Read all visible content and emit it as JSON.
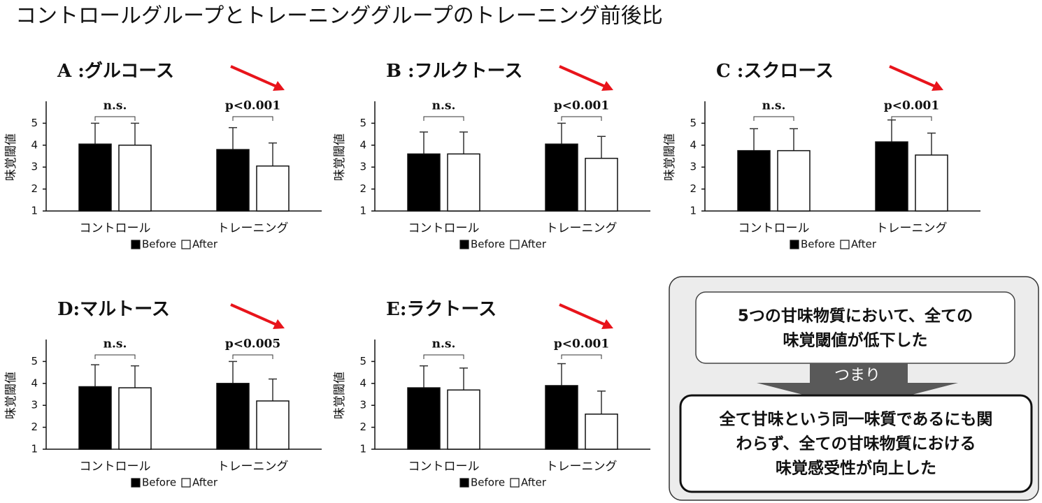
{
  "title": "コントロールグループとトレーニンググループのトレーニング前後比",
  "chart_data": [
    {
      "type": "bar",
      "title": "A :グルコース",
      "y_label": "味覚閾値",
      "categories": [
        "コントロール",
        "トレーニング"
      ],
      "series": [
        {
          "name": "Before",
          "color": "#000000",
          "values": [
            4.05,
            3.8
          ],
          "errors": [
            0.95,
            1.0
          ]
        },
        {
          "name": "After",
          "color": "#ffffff",
          "values": [
            4.0,
            3.05
          ],
          "errors": [
            1.0,
            1.05
          ]
        }
      ],
      "annotations": [
        "n.s.",
        "p<0.001"
      ],
      "ylim": [
        1,
        6
      ],
      "yticks": [
        1,
        2,
        3,
        4,
        5
      ]
    },
    {
      "type": "bar",
      "title": "B :フルクトース",
      "y_label": "味覚閾値",
      "categories": [
        "コントロール",
        "トレーニング"
      ],
      "series": [
        {
          "name": "Before",
          "color": "#000000",
          "values": [
            3.6,
            4.05
          ],
          "errors": [
            1.0,
            0.95
          ]
        },
        {
          "name": "After",
          "color": "#ffffff",
          "values": [
            3.6,
            3.4
          ],
          "errors": [
            1.0,
            1.0
          ]
        }
      ],
      "annotations": [
        "n.s.",
        "p<0.001"
      ],
      "ylim": [
        1,
        6
      ],
      "yticks": [
        1,
        2,
        3,
        4,
        5
      ]
    },
    {
      "type": "bar",
      "title": "C :スクロース",
      "y_label": "味覚閾値",
      "categories": [
        "コントロール",
        "トレーニング"
      ],
      "series": [
        {
          "name": "Before",
          "color": "#000000",
          "values": [
            3.75,
            4.15
          ],
          "errors": [
            1.0,
            1.0
          ]
        },
        {
          "name": "After",
          "color": "#ffffff",
          "values": [
            3.75,
            3.55
          ],
          "errors": [
            1.0,
            1.0
          ]
        }
      ],
      "annotations": [
        "n.s.",
        "p<0.001"
      ],
      "ylim": [
        1,
        6
      ],
      "yticks": [
        1,
        2,
        3,
        4,
        5
      ]
    },
    {
      "type": "bar",
      "title": "D:マルトース",
      "y_label": "味覚閾値",
      "categories": [
        "コントロール",
        "トレーニング"
      ],
      "series": [
        {
          "name": "Before",
          "color": "#000000",
          "values": [
            3.85,
            4.0
          ],
          "errors": [
            1.0,
            1.0
          ]
        },
        {
          "name": "After",
          "color": "#ffffff",
          "values": [
            3.8,
            3.2
          ],
          "errors": [
            1.0,
            1.0
          ]
        }
      ],
      "annotations": [
        "n.s.",
        "p<0.005"
      ],
      "ylim": [
        1,
        6
      ],
      "yticks": [
        1,
        2,
        3,
        4,
        5
      ]
    },
    {
      "type": "bar",
      "title": "E:ラクトース",
      "y_label": "味覚閾値",
      "categories": [
        "コントロール",
        "トレーニング"
      ],
      "series": [
        {
          "name": "Before",
          "color": "#000000",
          "values": [
            3.8,
            3.9
          ],
          "errors": [
            1.0,
            1.0
          ]
        },
        {
          "name": "After",
          "color": "#ffffff",
          "values": [
            3.7,
            2.6
          ],
          "errors": [
            1.0,
            1.05
          ]
        }
      ],
      "annotations": [
        "n.s.",
        "p<0.001"
      ],
      "ylim": [
        1,
        6
      ],
      "yticks": [
        1,
        2,
        3,
        4,
        5
      ]
    }
  ],
  "summary": {
    "finding": [
      "5つの甘味物質において、全ての",
      "味覚閾値が低下した"
    ],
    "connector": "つまり",
    "conclusion": [
      "全て甘味という同一味質であるにも関",
      "わらず、全ての甘味物質における",
      "味覚感受性が向上した"
    ]
  }
}
